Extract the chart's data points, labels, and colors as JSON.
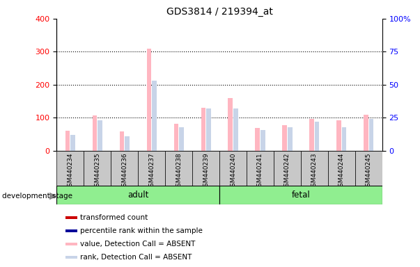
{
  "title": "GDS3814 / 219394_at",
  "samples": [
    "GSM440234",
    "GSM440235",
    "GSM440236",
    "GSM440237",
    "GSM440238",
    "GSM440239",
    "GSM440240",
    "GSM440241",
    "GSM440242",
    "GSM440243",
    "GSM440244",
    "GSM440245"
  ],
  "absent_value": [
    60,
    107,
    58,
    310,
    82,
    130,
    160,
    70,
    78,
    97,
    93,
    110
  ],
  "absent_rank": [
    12,
    23,
    11,
    53,
    18,
    32,
    32,
    16,
    18,
    22,
    18,
    24
  ],
  "ylim_left": [
    0,
    400
  ],
  "ylim_right": [
    0,
    100
  ],
  "yticks_left": [
    0,
    100,
    200,
    300,
    400
  ],
  "yticks_right": [
    0,
    25,
    50,
    75,
    100
  ],
  "color_absent_value": "#FFB6C1",
  "color_absent_rank": "#C8D4E8",
  "adult_color": "#90EE90",
  "fetal_color": "#90EE90",
  "tick_bg_color": "#C8C8C8",
  "adult_label": "adult",
  "fetal_label": "fetal",
  "dev_stage_label": "development stage",
  "legend_items": [
    {
      "label": "transformed count",
      "color": "#CC0000"
    },
    {
      "label": "percentile rank within the sample",
      "color": "#000099"
    },
    {
      "label": "value, Detection Call = ABSENT",
      "color": "#FFB6C1"
    },
    {
      "label": "rank, Detection Call = ABSENT",
      "color": "#C8D4E8"
    }
  ]
}
